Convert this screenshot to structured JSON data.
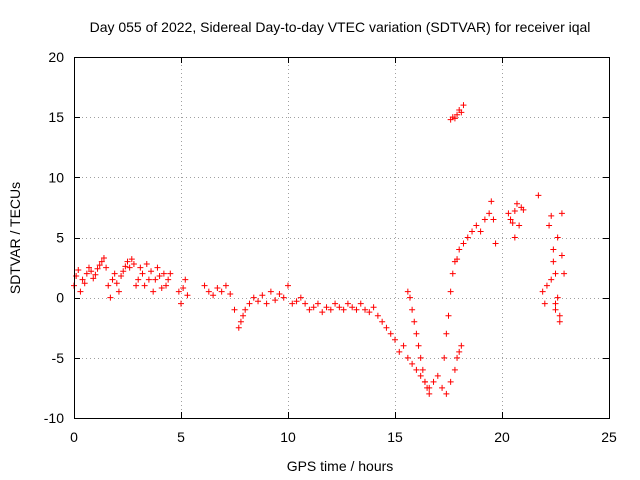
{
  "chart_data": {
    "type": "scatter",
    "title": "Day 055 of 2022, Sidereal Day-to-day VTEC variation (SDTVAR) for receiver iqal",
    "xlabel": "GPS time / hours",
    "ylabel": "SDTVAR / TECUs",
    "xlim": [
      0,
      25
    ],
    "ylim": [
      -10,
      20
    ],
    "xticks": [
      0,
      5,
      10,
      15,
      20,
      25
    ],
    "yticks": [
      -10,
      -5,
      0,
      5,
      10,
      15,
      20
    ],
    "xtick_labels": [
      "0",
      "5",
      "10",
      "15",
      "20",
      "25"
    ],
    "ytick_labels": [
      "-10",
      "-5",
      "0",
      "5",
      "10",
      "15",
      "20"
    ],
    "grid": true,
    "marker": "+",
    "color": "#ff0000",
    "series": [
      {
        "name": "SDTVAR",
        "x": [
          0.0,
          0.1,
          0.2,
          0.3,
          0.4,
          0.5,
          0.6,
          0.7,
          0.8,
          0.9,
          1.0,
          1.1,
          1.2,
          1.3,
          1.4,
          1.5,
          1.6,
          1.7,
          1.8,
          1.9,
          2.0,
          2.1,
          2.2,
          2.3,
          2.4,
          2.5,
          2.6,
          2.7,
          2.8,
          2.9,
          3.0,
          3.1,
          3.2,
          3.3,
          3.4,
          3.5,
          3.6,
          3.7,
          3.8,
          3.9,
          4.0,
          4.1,
          4.2,
          4.3,
          4.4,
          4.5,
          4.9,
          5.0,
          5.1,
          5.2,
          5.3,
          6.1,
          6.3,
          6.5,
          6.7,
          6.9,
          7.1,
          7.3,
          7.5,
          7.7,
          7.8,
          7.9,
          8.0,
          8.2,
          8.4,
          8.6,
          8.8,
          9.0,
          9.2,
          9.4,
          9.6,
          9.8,
          10.0,
          10.2,
          10.4,
          10.6,
          10.8,
          11.0,
          11.2,
          11.4,
          11.6,
          11.8,
          12.0,
          12.2,
          12.4,
          12.6,
          12.8,
          13.0,
          13.2,
          13.4,
          13.6,
          13.8,
          14.0,
          14.2,
          14.4,
          14.6,
          14.8,
          15.0,
          15.2,
          15.4,
          15.6,
          15.8,
          16.0,
          16.2,
          16.4,
          16.6,
          16.8,
          17.0,
          17.2,
          17.4,
          17.6,
          17.8,
          17.9,
          18.0,
          18.1,
          15.6,
          15.7,
          15.8,
          15.9,
          16.0,
          16.1,
          16.2,
          16.3,
          16.4,
          16.5,
          16.6,
          17.3,
          17.4,
          17.5,
          17.6,
          17.7,
          17.8,
          17.9,
          18.0,
          18.2,
          18.4,
          18.6,
          18.8,
          19.0,
          19.2,
          19.4,
          19.5,
          19.6,
          19.7,
          17.6,
          17.7,
          17.8,
          17.9,
          18.0,
          18.1,
          18.2,
          20.3,
          20.4,
          20.5,
          20.6,
          20.7,
          20.8,
          20.9,
          21.0,
          20.6,
          21.7,
          21.9,
          22.0,
          22.1,
          22.2,
          22.3,
          22.4,
          22.5,
          22.6,
          22.7,
          22.8,
          22.9,
          22.5,
          22.6,
          22.7,
          22.8,
          22.3,
          22.4,
          22.5
        ],
        "y": [
          1.0,
          1.8,
          2.3,
          0.5,
          1.5,
          1.2,
          2.0,
          2.5,
          2.2,
          1.6,
          1.9,
          2.4,
          2.7,
          3.0,
          3.3,
          2.5,
          1.0,
          0.0,
          1.5,
          2.0,
          1.2,
          0.5,
          1.8,
          2.2,
          2.6,
          3.0,
          2.5,
          3.2,
          2.8,
          1.0,
          1.5,
          2.5,
          2.0,
          1.0,
          2.8,
          1.5,
          2.2,
          0.5,
          1.5,
          2.5,
          1.8,
          0.8,
          2.0,
          1.0,
          1.5,
          2.0,
          0.5,
          -0.5,
          0.8,
          1.5,
          0.2,
          1.0,
          0.5,
          0.2,
          0.8,
          0.5,
          1.0,
          0.3,
          -1.0,
          -2.5,
          -2.0,
          -1.5,
          -1.0,
          -0.5,
          0.0,
          -0.3,
          0.2,
          -0.5,
          0.5,
          -0.2,
          0.3,
          0.0,
          1.0,
          -0.5,
          -0.3,
          0.0,
          -0.5,
          -1.0,
          -0.8,
          -0.5,
          -1.2,
          -0.8,
          -1.0,
          -0.5,
          -0.8,
          -1.0,
          -0.5,
          -0.8,
          -1.0,
          -0.5,
          -1.0,
          -1.2,
          -0.8,
          -1.5,
          -2.0,
          -2.5,
          -3.0,
          -3.5,
          -4.5,
          -4.0,
          -5.0,
          -5.5,
          -6.0,
          -6.5,
          -7.0,
          -7.5,
          -7.0,
          -6.5,
          -7.5,
          -8.0,
          -7.0,
          -6.0,
          -5.0,
          -4.5,
          -4.0,
          0.5,
          0.0,
          -1.0,
          -2.0,
          -3.0,
          -4.0,
          -5.0,
          -6.0,
          -7.0,
          -7.5,
          -8.0,
          -5.0,
          -3.0,
          -1.5,
          0.5,
          2.0,
          3.0,
          3.2,
          4.0,
          4.5,
          5.0,
          5.5,
          6.0,
          5.5,
          6.5,
          7.0,
          8.0,
          6.5,
          4.5,
          14.8,
          15.0,
          14.9,
          15.2,
          15.6,
          15.4,
          16.0,
          7.0,
          6.5,
          6.2,
          7.2,
          7.8,
          6.0,
          7.5,
          7.3,
          5.0,
          8.5,
          0.5,
          -0.5,
          1.0,
          6.0,
          6.8,
          4.0,
          2.0,
          0.0,
          -2.0,
          3.5,
          2.0,
          -1.0,
          5.0,
          -1.5,
          7.0,
          1.5,
          3.0,
          -0.5
        ]
      }
    ]
  }
}
